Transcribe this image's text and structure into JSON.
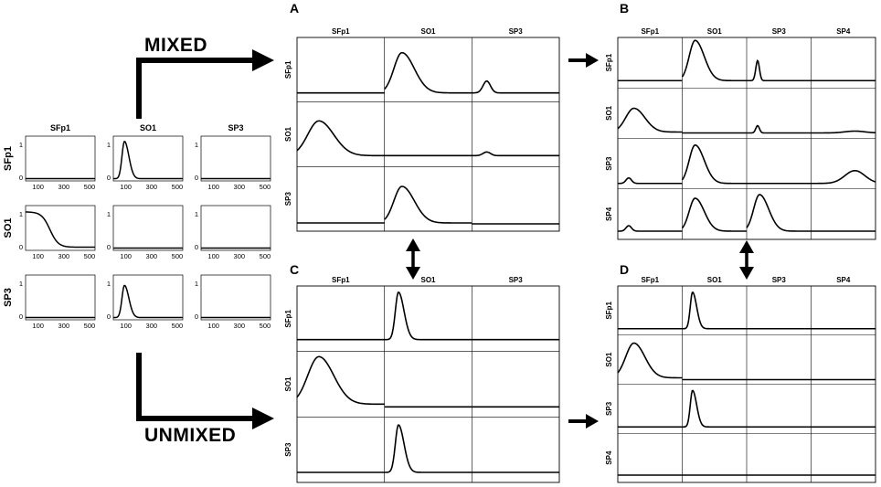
{
  "labels": {
    "mixed": "MIXED",
    "unmixed": "UNMIXED"
  },
  "source": {
    "cols": [
      "SFp1",
      "SO1",
      "SP3"
    ],
    "rows": [
      "SFp1",
      "SO1",
      "SP3"
    ],
    "y_ticks": [
      "1",
      "0"
    ],
    "x_ticks": [
      "100",
      "300",
      "500"
    ]
  },
  "panels": {
    "A": {
      "letter": "A",
      "cols": [
        "SFp1",
        "SO1",
        "SP3"
      ],
      "rows": [
        "SFp1",
        "SO1",
        "SP3"
      ]
    },
    "B": {
      "letter": "B",
      "cols": [
        "SFp1",
        "SO1",
        "SP3",
        "SP4"
      ],
      "rows": [
        "SFp1",
        "SO1",
        "SP3",
        "SP4"
      ]
    },
    "C": {
      "letter": "C",
      "cols": [
        "SFp1",
        "SO1",
        "SP3"
      ],
      "rows": [
        "SFp1",
        "SO1",
        "SP3"
      ]
    },
    "D": {
      "letter": "D",
      "cols": [
        "SFp1",
        "SO1",
        "SP3",
        "SP4"
      ],
      "rows": [
        "SFp1",
        "SO1",
        "SP3",
        "SP4"
      ]
    }
  },
  "colors": {
    "line": "#000000",
    "frame": "#000000",
    "grid_bg": "#ffffff"
  }
}
